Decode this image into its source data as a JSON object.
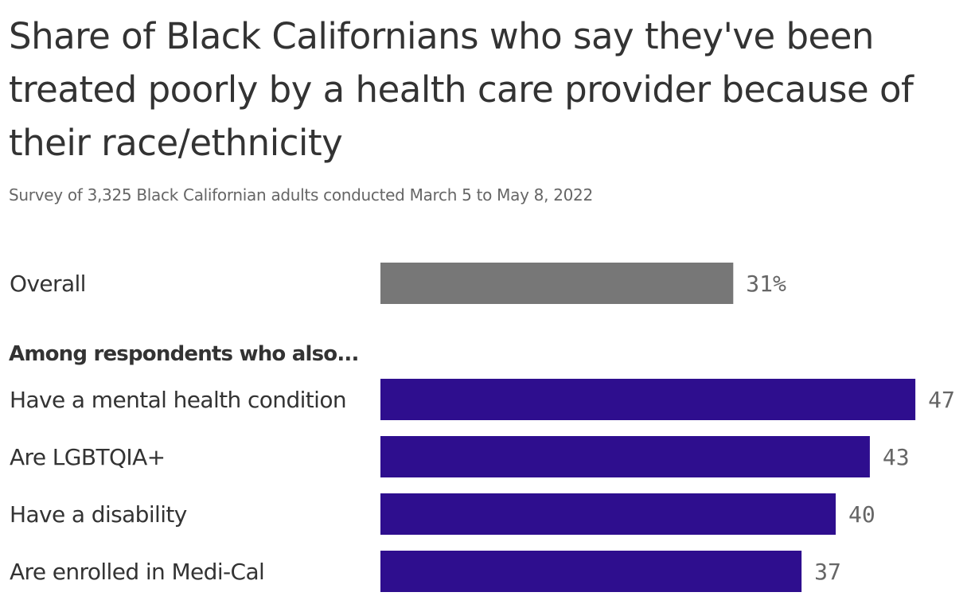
{
  "chart_data": {
    "type": "bar",
    "title": "Share of Black Californians who say they've been treated poorly by a health care provider because of their race/ethnicity",
    "subtitle": "Survey of 3,325 Black Californian adults conducted March 5 to May 8, 2022",
    "group_heading": "Among respondents who also...",
    "categories": [
      "Overall",
      "Have a mental health condition",
      "Are LGBTQIA+",
      "Have a disability",
      "Are enrolled in Medi-Cal"
    ],
    "values": [
      31,
      47,
      43,
      40,
      37
    ],
    "value_labels": [
      "31%",
      "47",
      "43",
      "40",
      "37"
    ],
    "colors": [
      "#777777",
      "#2e0e8e",
      "#2e0e8e",
      "#2e0e8e",
      "#2e0e8e"
    ],
    "xlim": [
      0,
      50
    ],
    "grid": false
  }
}
